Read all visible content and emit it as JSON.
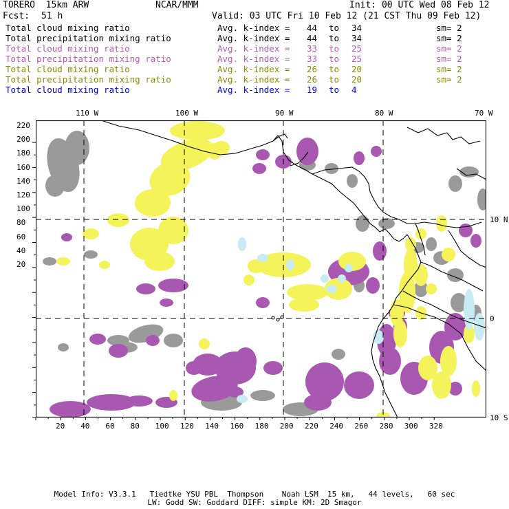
{
  "header": {
    "model": "TORERO  15km ARW",
    "center": "NCAR/MMM",
    "init": "Init: 00 UTC Wed 08 Feb 12",
    "fcst_label": "Fcst:",
    "fcst_value": "51 h",
    "valid": "Valid: 03 UTC Fri 10 Feb 12 (21 CST Thu 09 Feb 12)"
  },
  "legend": [
    {
      "name": "Total cloud mixing ratio",
      "k_label": "Avg. k-index =",
      "from": "44",
      "to_word": "to",
      "to": "34",
      "sm": "sm= 2",
      "color": "#000000"
    },
    {
      "name": "Total precipitation mixing ratio",
      "k_label": "Avg. k-index =",
      "from": "44",
      "to_word": "to",
      "to": "34",
      "sm": "sm= 2",
      "color": "#000000"
    },
    {
      "name": "Total cloud mixing ratio",
      "k_label": "Avg. k-index =",
      "from": "33",
      "to_word": "to",
      "to": "25",
      "sm": "sm= 2",
      "color": "#b45ab4"
    },
    {
      "name": "Total precipitation mixing ratio",
      "k_label": "Avg. k-index =",
      "from": "33",
      "to_word": "to",
      "to": "25",
      "sm": "sm= 2",
      "color": "#b45ab4"
    },
    {
      "name": "Total cloud mixing ratio",
      "k_label": "Avg. k-index =",
      "from": "26",
      "to_word": "to",
      "to": "20",
      "sm": "sm= 2",
      "color": "#8c8c00"
    },
    {
      "name": "Total precipitation mixing ratio",
      "k_label": "Avg. k-index =",
      "from": "26",
      "to_word": "to",
      "to": "20",
      "sm": "sm= 2",
      "color": "#8c8c00"
    },
    {
      "name": "Total cloud mixing ratio",
      "k_label": "Avg. k-index =",
      "from": "19",
      "to_word": "to",
      "to": "4",
      "sm": "",
      "color": "#0000dc"
    }
  ],
  "map": {
    "top_lon_labels": [
      "110 W",
      "100 W",
      "90 W",
      "80 W",
      "70 W"
    ],
    "right_lat_labels": [
      "10 N",
      "0",
      "10 S"
    ],
    "left_ticks": [
      "220",
      "200",
      "180",
      "160",
      "140",
      "120",
      "100",
      "80",
      "60",
      "40",
      "20"
    ],
    "bottom_ticks": [
      "20",
      "40",
      "60",
      "80",
      "100",
      "120",
      "140",
      "160",
      "180",
      "200",
      "220",
      "240",
      "260",
      "280",
      "300",
      "320"
    ],
    "colors": {
      "gray": "#9a9a9a",
      "purple": "#a858b0",
      "yellow": "#f4f45a",
      "light_blue": "#c8ecf4"
    }
  },
  "footer": {
    "line1": "Model Info: V3.3.1   Tiedtke YSU PBL  Thompson    Noah LSM  15 km,   44 levels,   60 sec",
    "line2": "LW: Godd SW: Goddard DIFF: simple KM: 2D Smagor"
  }
}
